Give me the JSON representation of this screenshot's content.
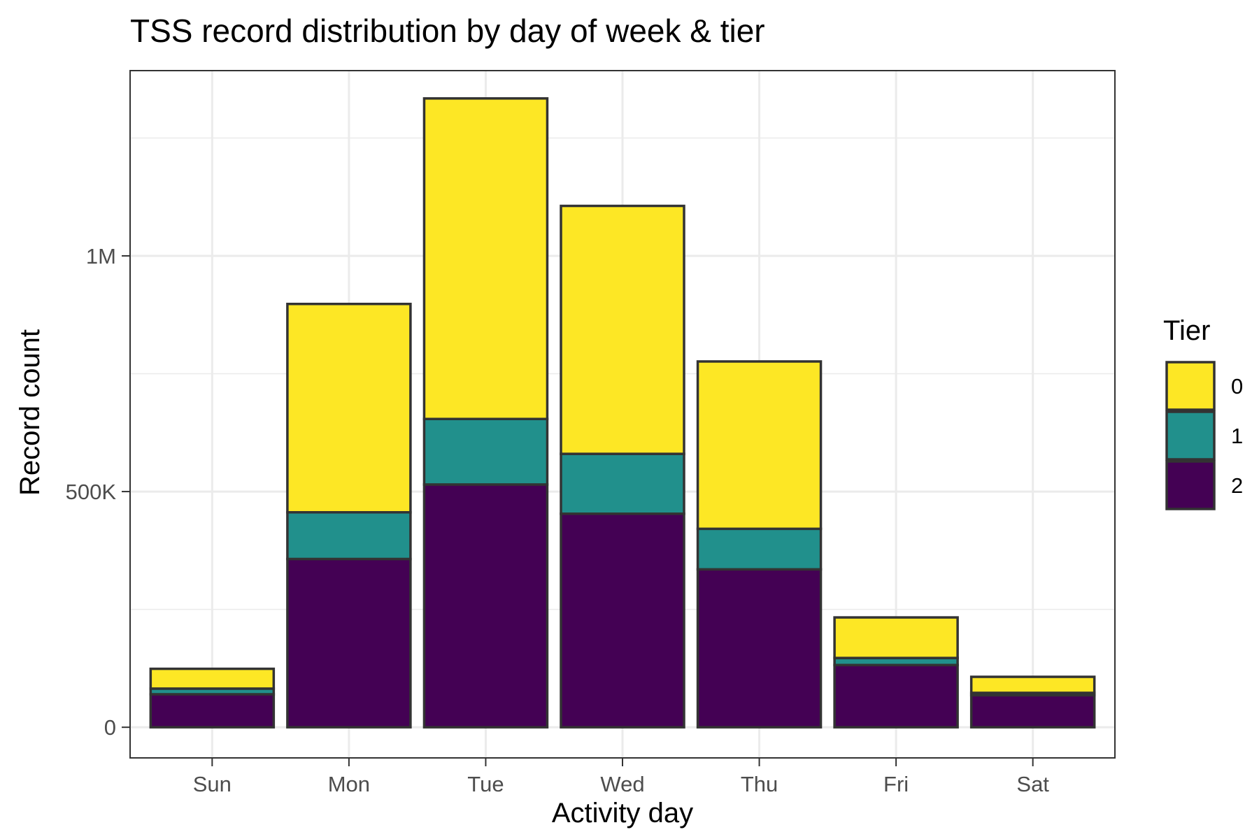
{
  "chart_data": {
    "type": "bar",
    "stacked": true,
    "title": "TSS record distribution by day of week & tier",
    "xlabel": "Activity day",
    "ylabel": "Record count",
    "categories": [
      "Sun",
      "Mon",
      "Tue",
      "Wed",
      "Thu",
      "Fri",
      "Sat"
    ],
    "yticks": [
      {
        "value": 0,
        "label": "0"
      },
      {
        "value": 500000,
        "label": "500K"
      },
      {
        "value": 1000000,
        "label": "1M"
      }
    ],
    "ylim": [
      -65000,
      1393000
    ],
    "grid": true,
    "legend": {
      "title": "Tier",
      "position": "right",
      "entries": [
        "0",
        "1",
        "2"
      ]
    },
    "series": [
      {
        "name": "2",
        "color": "#440154",
        "values": [
          70000,
          357000,
          515000,
          453000,
          335000,
          132000,
          68000
        ]
      },
      {
        "name": "1",
        "color": "#21908C",
        "values": [
          12000,
          99000,
          139000,
          127000,
          86000,
          15000,
          5000
        ]
      },
      {
        "name": "0",
        "color": "#FDE725",
        "values": [
          42000,
          442000,
          680000,
          526000,
          355000,
          86000,
          34000
        ]
      }
    ]
  }
}
